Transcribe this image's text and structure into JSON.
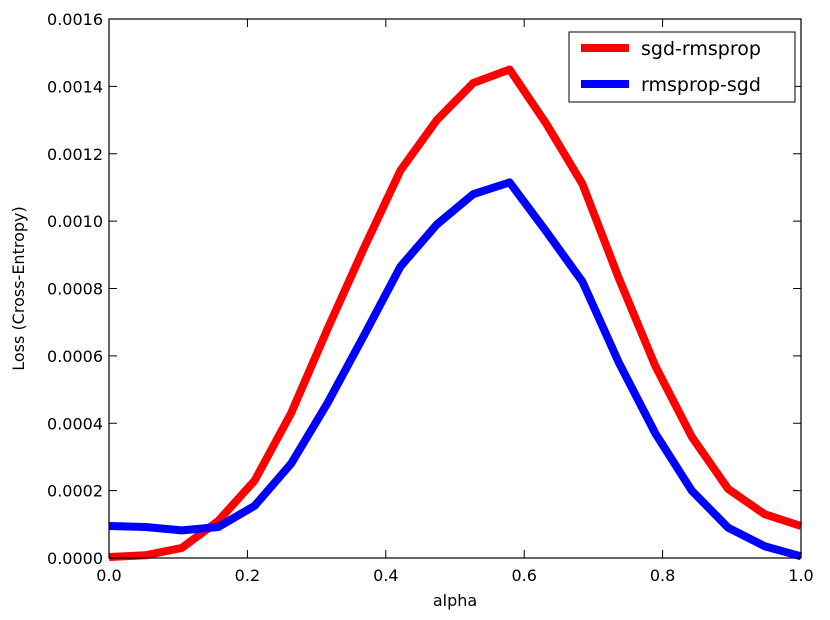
{
  "chart_data": {
    "type": "line",
    "title": "",
    "xlabel": "alpha",
    "ylabel": "Loss (Cross-Entropy)",
    "xlim": [
      0.0,
      1.0
    ],
    "ylim": [
      0.0,
      0.0016
    ],
    "xticks": [
      "0.0",
      "0.2",
      "0.4",
      "0.6",
      "0.8",
      "1.0"
    ],
    "yticks": [
      "0.0000",
      "0.0002",
      "0.0004",
      "0.0006",
      "0.0008",
      "0.0010",
      "0.0012",
      "0.0014",
      "0.0016"
    ],
    "grid": false,
    "legend_position": "top-right",
    "x": [
      0.0,
      0.0526,
      0.1053,
      0.1579,
      0.2105,
      0.2632,
      0.3158,
      0.3684,
      0.4211,
      0.4737,
      0.5263,
      0.5789,
      0.6316,
      0.6842,
      0.7368,
      0.7895,
      0.8421,
      0.8947,
      0.9474,
      1.0
    ],
    "series": [
      {
        "name": "sgd-rmsprop",
        "color": "#ff0000",
        "values": [
          3e-06,
          8e-06,
          3e-05,
          0.00011,
          0.00023,
          0.00043,
          0.00068,
          0.00092,
          0.00115,
          0.0013,
          0.00141,
          0.00145,
          0.00129,
          0.00111,
          0.00083,
          0.00057,
          0.00036,
          0.000205,
          0.00013,
          9.5e-05
        ]
      },
      {
        "name": "rmsprop-sgd",
        "color": "#0000ff",
        "values": [
          9.5e-05,
          9.2e-05,
          8.2e-05,
          9.2e-05,
          0.000155,
          0.00028,
          0.00046,
          0.00066,
          0.000865,
          0.00099,
          0.00108,
          0.001115,
          0.00097,
          0.00082,
          0.00058,
          0.00037,
          0.0002,
          9e-05,
          3.5e-05,
          5e-06
        ]
      }
    ]
  }
}
